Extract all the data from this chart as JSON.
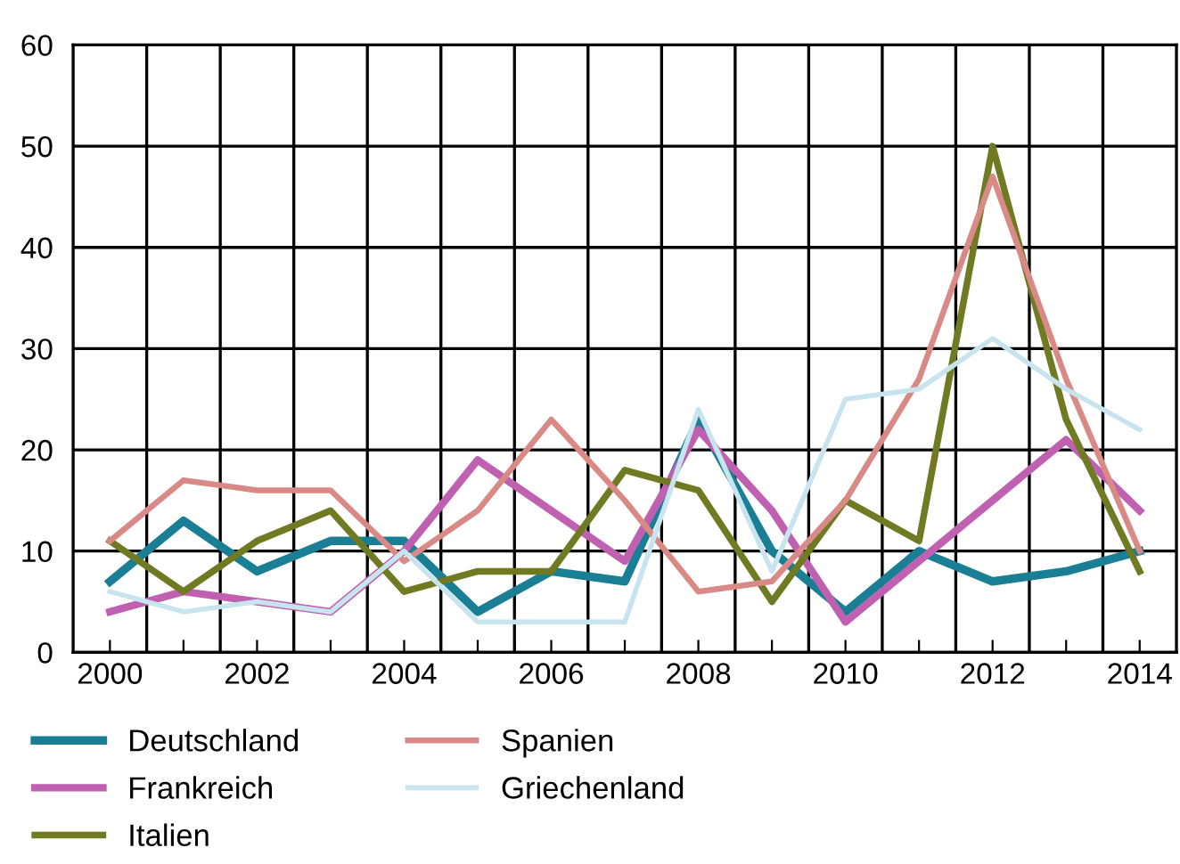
{
  "chart_data": {
    "type": "line",
    "categories": [
      "2000",
      null,
      "2002",
      null,
      "2004",
      null,
      "2006",
      null,
      "2008",
      null,
      "2010",
      null,
      "2012",
      null,
      "2014"
    ],
    "series": [
      {
        "name": "Deutschland",
        "color": "#1a7f95",
        "values": [
          7,
          13,
          8,
          11,
          11,
          4,
          8,
          7,
          23,
          10,
          4,
          10,
          7,
          8,
          10
        ]
      },
      {
        "name": "Frankreich",
        "color": "#c060b0",
        "values": [
          4,
          6,
          5,
          4,
          10,
          19,
          14,
          9,
          22,
          14,
          3,
          9,
          15,
          21,
          14
        ]
      },
      {
        "name": "Italien",
        "color": "#6f7a22",
        "values": [
          11,
          6,
          11,
          14,
          6,
          8,
          8,
          18,
          16,
          5,
          15,
          11,
          50,
          23,
          8
        ]
      },
      {
        "name": "Spanien",
        "color": "#d98a86",
        "values": [
          11,
          17,
          16,
          16,
          9,
          14,
          23,
          15,
          6,
          7,
          15,
          27,
          47,
          27,
          10
        ]
      },
      {
        "name": "Griechenland",
        "color": "#c8e4ee",
        "values": [
          6,
          4,
          5,
          4,
          10,
          3,
          3,
          3,
          24,
          8,
          25,
          26,
          31,
          26,
          22
        ]
      }
    ],
    "ylim": [
      0,
      60
    ],
    "yticks": [
      0,
      10,
      20,
      30,
      40,
      50,
      60
    ],
    "grid": true,
    "legend": "bottom",
    "marker": "none",
    "line_style": "solid"
  }
}
